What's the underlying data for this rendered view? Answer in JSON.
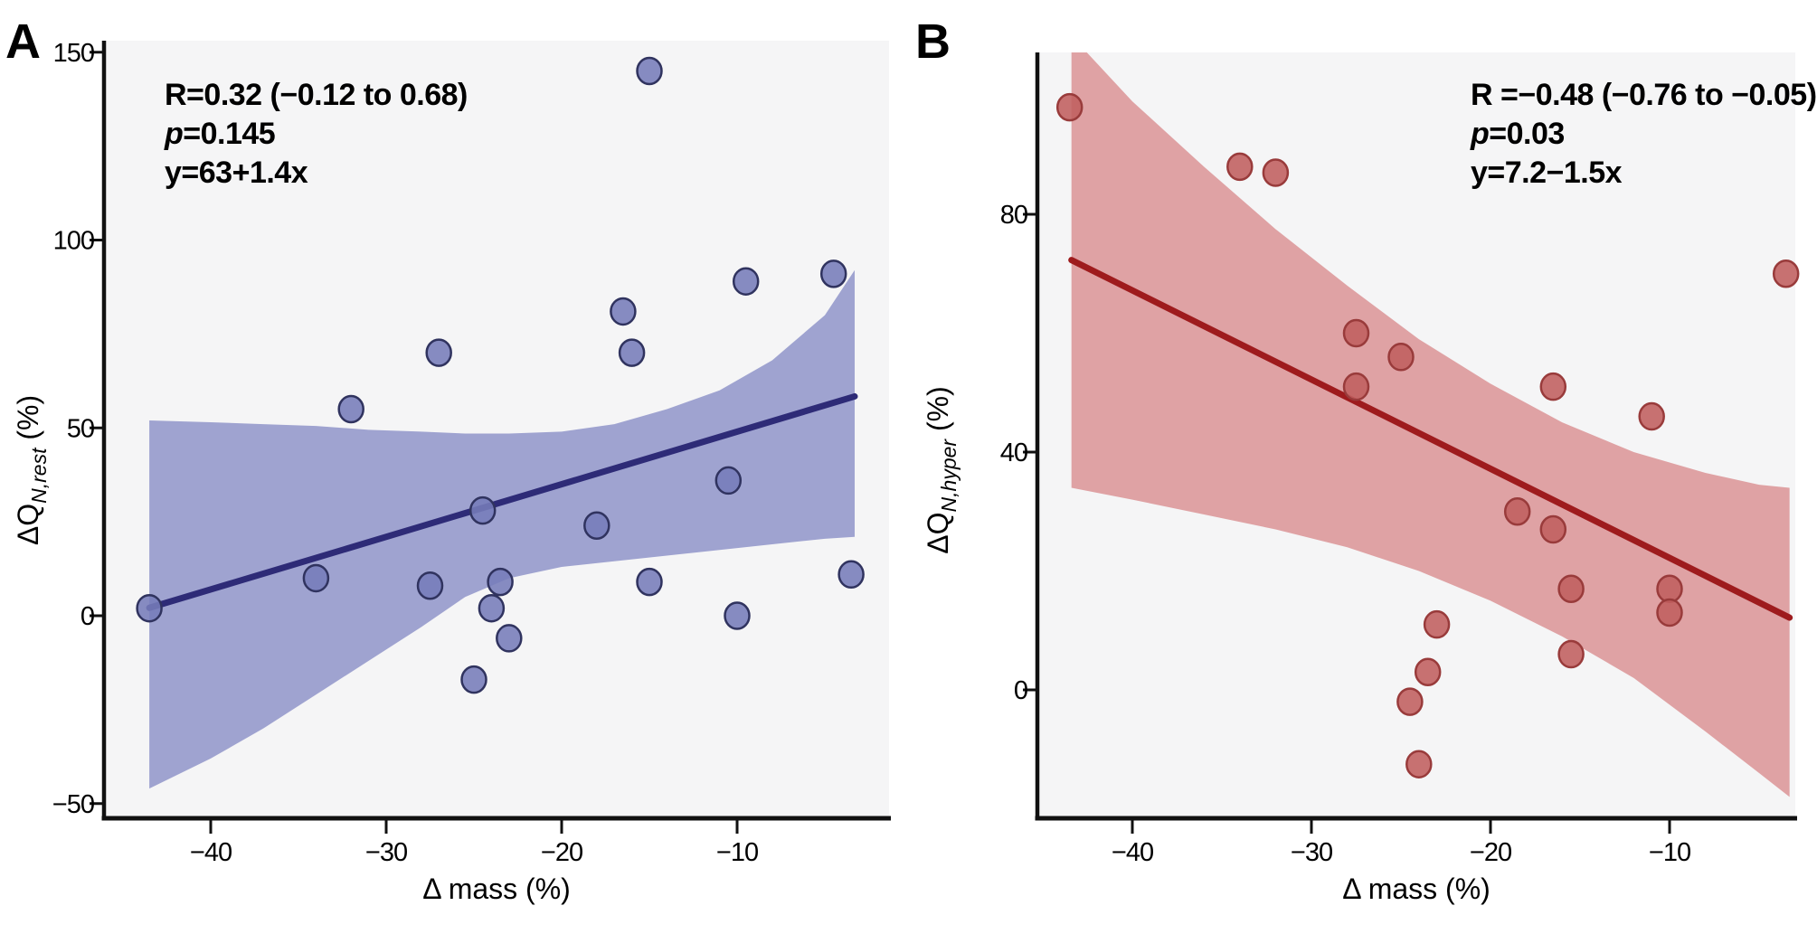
{
  "chart_data": {
    "type": "scatter",
    "description": "Two-panel scatter plots with linear regression lines and confidence bands",
    "panels": [
      {
        "id": "A",
        "letter": "A",
        "annotation": {
          "r_line": "R=0.32 (−0.12 to 0.68)",
          "p_var": "p",
          "p_rest": "=0.145",
          "equation": "y=63+1.4x"
        },
        "x_axis": {
          "label": "Δ mass (%)",
          "ticks": [
            {
              "v": -40,
              "label": "−40"
            },
            {
              "v": -30,
              "label": "−30"
            },
            {
              "v": -20,
              "label": "−20"
            },
            {
              "v": -10,
              "label": "−10"
            }
          ]
        },
        "y_axis": {
          "label_main": "ΔQ",
          "label_sub": "N,rest",
          "label_unit": " (%)",
          "ticks": [
            {
              "v": 150,
              "label": "150"
            },
            {
              "v": 100,
              "label": "100"
            },
            {
              "v": 50,
              "label": "50"
            },
            {
              "v": 0,
              "label": "0"
            },
            {
              "v": -50,
              "label": "−50"
            }
          ]
        },
        "regression": {
          "intercept": 63,
          "slope": 1.4,
          "x_start": -43.5,
          "x_end": -3.3
        },
        "ci_band": [
          [
            -43.5,
            -46,
            52
          ],
          [
            -40,
            -38,
            51.5
          ],
          [
            -37,
            -30,
            51
          ],
          [
            -34,
            -21,
            50.5
          ],
          [
            -31,
            -12,
            49.5
          ],
          [
            -28,
            -3,
            49
          ],
          [
            -25.5,
            5,
            48.5
          ],
          [
            -23,
            10,
            48.5
          ],
          [
            -20,
            13,
            49
          ],
          [
            -17,
            14.5,
            51
          ],
          [
            -14,
            16,
            55
          ],
          [
            -11,
            17.5,
            60
          ],
          [
            -8,
            19,
            68
          ],
          [
            -5,
            20.5,
            80
          ],
          [
            -3.3,
            21,
            92
          ]
        ],
        "points": [
          [
            -43.5,
            2
          ],
          [
            -34,
            10
          ],
          [
            -32,
            55
          ],
          [
            -27.5,
            8
          ],
          [
            -27,
            70
          ],
          [
            -24.5,
            28
          ],
          [
            -24,
            2
          ],
          [
            -23.5,
            9
          ],
          [
            -23,
            -6
          ],
          [
            -25,
            -17
          ],
          [
            -18,
            24
          ],
          [
            -16.5,
            81
          ],
          [
            -16,
            70
          ],
          [
            -15,
            145
          ],
          [
            -15,
            9
          ],
          [
            -10.5,
            36
          ],
          [
            -10,
            0
          ],
          [
            -9.5,
            89
          ],
          [
            -4.5,
            91
          ],
          [
            -3.5,
            11
          ]
        ],
        "colors": {
          "point_fill": "#767cb9",
          "point_stroke": "#30335f",
          "band": "#9fa3d0",
          "line": "#2e2b77",
          "plot_bg": "#f5f5f6"
        }
      },
      {
        "id": "B",
        "letter": "B",
        "annotation": {
          "r_line": "R =−0.48 (−0.76 to −0.05)",
          "p_var": "p",
          "p_rest": "=0.03",
          "equation": "y=7.2−1.5x"
        },
        "x_axis": {
          "label": "Δ mass (%)",
          "ticks": [
            {
              "v": -40,
              "label": "−40"
            },
            {
              "v": -30,
              "label": "−30"
            },
            {
              "v": -20,
              "label": "−20"
            },
            {
              "v": -10,
              "label": "−10"
            }
          ]
        },
        "y_axis": {
          "label_main": "ΔQ",
          "label_sub": "N,hyper",
          "label_unit": " (%)",
          "ticks": [
            {
              "v": 80,
              "label": "80"
            },
            {
              "v": 40,
              "label": "40"
            },
            {
              "v": 0,
              "label": "0"
            }
          ]
        },
        "regression": {
          "intercept": 7.2,
          "slope": -1.5,
          "x_start": -43.4,
          "x_end": -3.3
        },
        "ci_band": [
          [
            -43.4,
            34,
            110
          ],
          [
            -40,
            32,
            99
          ],
          [
            -36,
            29.5,
            88
          ],
          [
            -32,
            27,
            77.5
          ],
          [
            -28,
            24,
            68
          ],
          [
            -24,
            20,
            59
          ],
          [
            -20,
            15,
            51.5
          ],
          [
            -16,
            9,
            45
          ],
          [
            -12,
            2,
            40
          ],
          [
            -8,
            -7,
            36.5
          ],
          [
            -5,
            -14,
            34.5
          ],
          [
            -3.3,
            -18,
            34
          ]
        ],
        "points": [
          [
            -43.5,
            98
          ],
          [
            -34,
            88
          ],
          [
            -32,
            87
          ],
          [
            -27.5,
            60
          ],
          [
            -27.5,
            51
          ],
          [
            -25,
            56
          ],
          [
            -16.5,
            51
          ],
          [
            -11,
            46
          ],
          [
            -18.5,
            30
          ],
          [
            -16.5,
            27
          ],
          [
            -15.5,
            17
          ],
          [
            -10,
            17
          ],
          [
            -10,
            13
          ],
          [
            -3.5,
            70
          ],
          [
            -23,
            11
          ],
          [
            -23.5,
            3
          ],
          [
            -24.5,
            -2
          ],
          [
            -24,
            -12.5
          ],
          [
            -15.5,
            6
          ]
        ],
        "colors": {
          "point_fill": "#c05f5e",
          "point_stroke": "#993b3b",
          "band": "#dfa2a4",
          "line": "#9e1b1d",
          "plot_bg": "#f5f5f6"
        }
      }
    ]
  }
}
